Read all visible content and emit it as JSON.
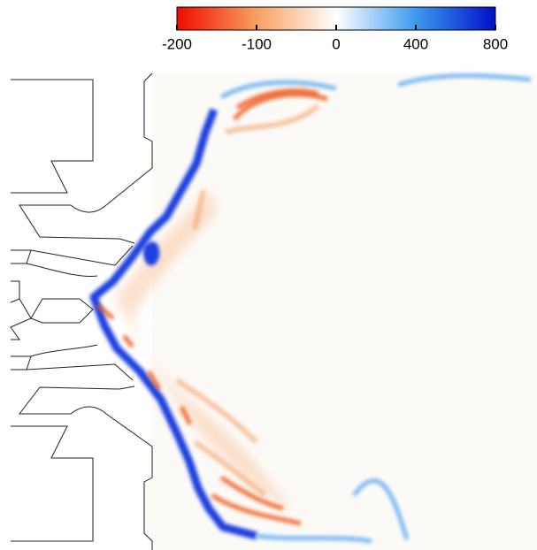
{
  "chart_data": {
    "type": "contour",
    "colorbar": {
      "clim": [
        -200,
        800
      ],
      "ticks": [
        -200,
        -100,
        0,
        400,
        800
      ],
      "colors": [
        "#f00a00",
        "#f7a060",
        "#ffffff",
        "#3d9af0",
        "#0010c8"
      ]
    }
  }
}
